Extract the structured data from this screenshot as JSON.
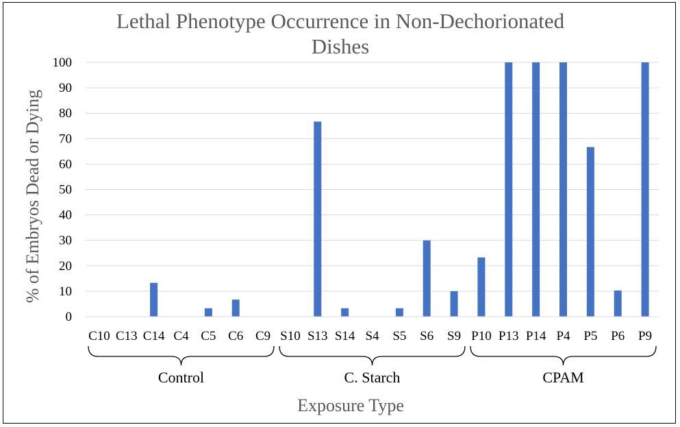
{
  "chart_data": {
    "type": "bar",
    "title": "Lethal Phenotype Occurrence in Non-Dechorionated Dishes",
    "title_lines": [
      "Lethal Phenotype Occurrence in Non-Dechorionated",
      "Dishes"
    ],
    "ylabel": "% of Embryos Dead or Dying",
    "xlabel": "Exposure Type",
    "ylim": [
      0,
      100
    ],
    "yticks": [
      "0",
      "10",
      "20",
      "30",
      "40",
      "50",
      "60",
      "70",
      "80",
      "90",
      "100"
    ],
    "grid": true,
    "bar_color": "#4472C4",
    "categories": [
      "C10",
      "C13",
      "C14",
      "C4",
      "C5",
      "C6",
      "C9",
      "S10",
      "S13",
      "S14",
      "S4",
      "S5",
      "S6",
      "S9",
      "P10",
      "P13",
      "P14",
      "P4",
      "P5",
      "P6",
      "P9"
    ],
    "values": [
      0,
      0,
      13.3,
      0,
      3.3,
      6.7,
      0,
      0,
      76.7,
      3.3,
      0,
      3.3,
      30,
      10,
      23.3,
      100,
      100,
      100,
      66.7,
      10.3,
      100
    ],
    "groups": [
      {
        "label": "Control",
        "start": 0,
        "end": 6
      },
      {
        "label": "C. Starch",
        "start": 7,
        "end": 13
      },
      {
        "label": "CPAM",
        "start": 14,
        "end": 20
      }
    ]
  }
}
